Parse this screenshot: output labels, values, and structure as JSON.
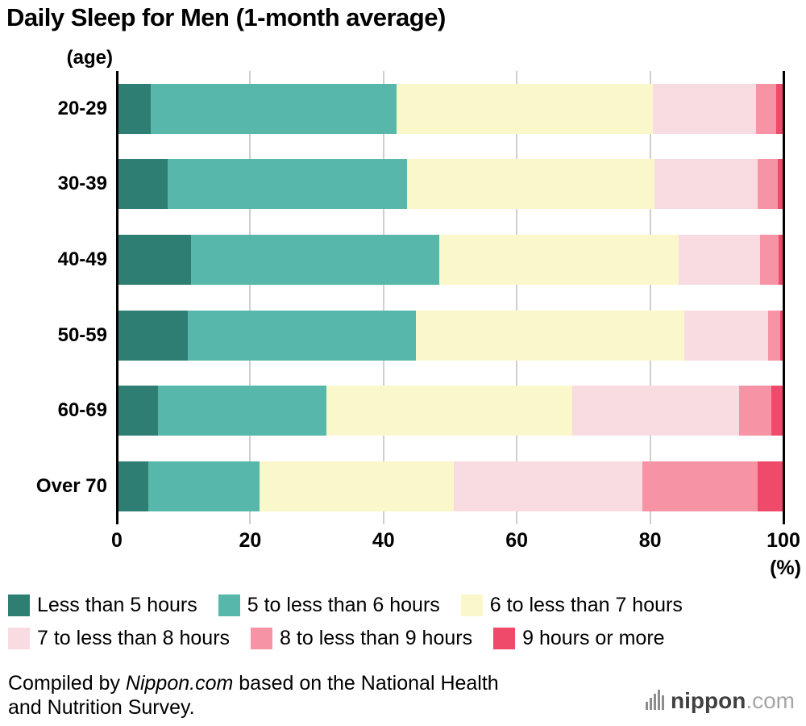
{
  "title": "Daily Sleep for Men (1-month average)",
  "y_axis_unit": "(age)",
  "x_axis": {
    "ticks": [
      0,
      20,
      40,
      60,
      80,
      100
    ],
    "unit": "(%)"
  },
  "chart_data": {
    "type": "bar",
    "stacked": true,
    "orientation": "horizontal",
    "title": "Daily Sleep for Men (1-month average)",
    "xlabel": "(%)",
    "ylabel": "(age)",
    "xlim": [
      0,
      100
    ],
    "grid": true,
    "gridline_color": "#cfcfcf",
    "legend_position": "bottom",
    "categories": [
      "20-29",
      "30-39",
      "40-49",
      "50-59",
      "60-69",
      "Over 70"
    ],
    "series": [
      {
        "name": "Less than 5 hours",
        "color": "#2F7E74",
        "values": [
          5.1,
          7.6,
          11.1,
          10.6,
          6.2,
          4.7
        ]
      },
      {
        "name": "5 to less than 6 hours",
        "color": "#56B7AA",
        "values": [
          36.9,
          35.9,
          37.3,
          34.3,
          25.2,
          16.7
        ]
      },
      {
        "name": "6 to less than 7 hours",
        "color": "#FAF7CB",
        "values": [
          38.4,
          37.2,
          35.9,
          40.2,
          36.9,
          29.1
        ]
      },
      {
        "name": "7 to less than 8 hours",
        "color": "#F9DCE2",
        "values": [
          15.5,
          15.4,
          12.2,
          12.6,
          25.0,
          28.3
        ]
      },
      {
        "name": "8 to less than 9 hours",
        "color": "#F693A4",
        "values": [
          3.0,
          3.1,
          2.8,
          1.8,
          4.9,
          17.3
        ]
      },
      {
        "name": "9 hours or more",
        "color": "#EF4A69",
        "values": [
          1.1,
          0.8,
          0.7,
          0.5,
          1.8,
          3.9
        ]
      }
    ]
  },
  "legend": {
    "items_per_row": 3
  },
  "footer": {
    "prefix": "Compiled by ",
    "source": "Nippon.com",
    "suffix": " based on the National Health and Nutrition Survey."
  },
  "logo": {
    "name": "nippon",
    "tld": ".com"
  }
}
